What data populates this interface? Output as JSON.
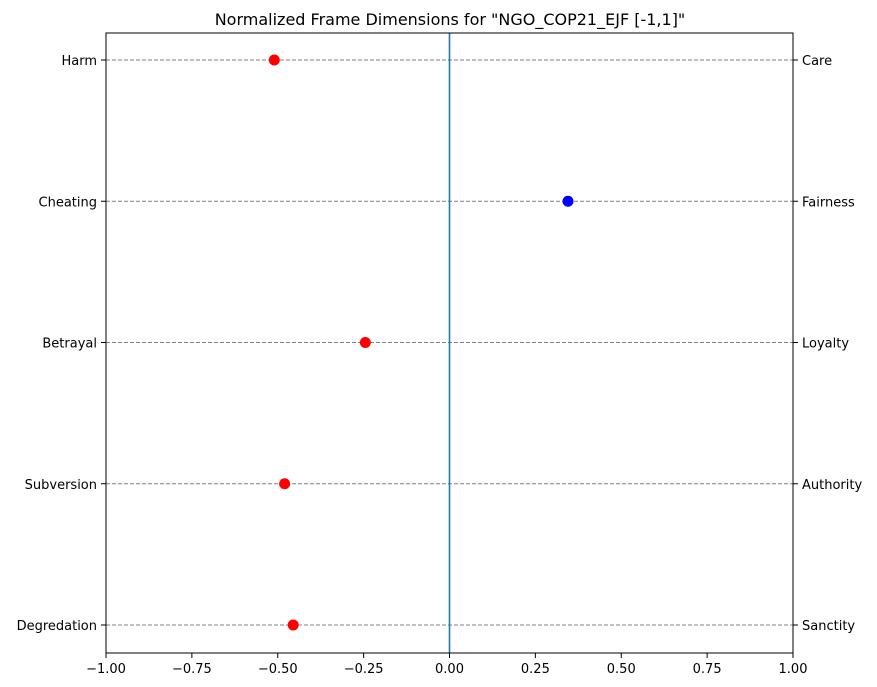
{
  "chart_data": {
    "type": "scatter",
    "title": "Normalized Frame Dimensions for \"NGO_COP21_EJF [-1,1]\"",
    "xlim": [
      -1.0,
      1.0
    ],
    "xticks": [
      -1.0,
      -0.75,
      -0.5,
      -0.25,
      0.0,
      0.25,
      0.5,
      0.75,
      1.0
    ],
    "xtick_labels": [
      "−1.00",
      "−0.75",
      "−0.50",
      "−0.25",
      "0.00",
      "0.25",
      "0.50",
      "0.75",
      "1.00"
    ],
    "left_labels": [
      "Harm",
      "Cheating",
      "Betrayal",
      "Subversion",
      "Degredation"
    ],
    "right_labels": [
      "Care",
      "Fairness",
      "Loyalty",
      "Authority",
      "Sanctity"
    ],
    "values": [
      -0.51,
      0.345,
      -0.245,
      -0.48,
      -0.455
    ],
    "colors": {
      "negative": "#ff0000",
      "positive": "#0000ff",
      "center_line": "#1f77b4",
      "grid": "#808080"
    },
    "grid": true,
    "vertical_line_at": 0.0
  }
}
